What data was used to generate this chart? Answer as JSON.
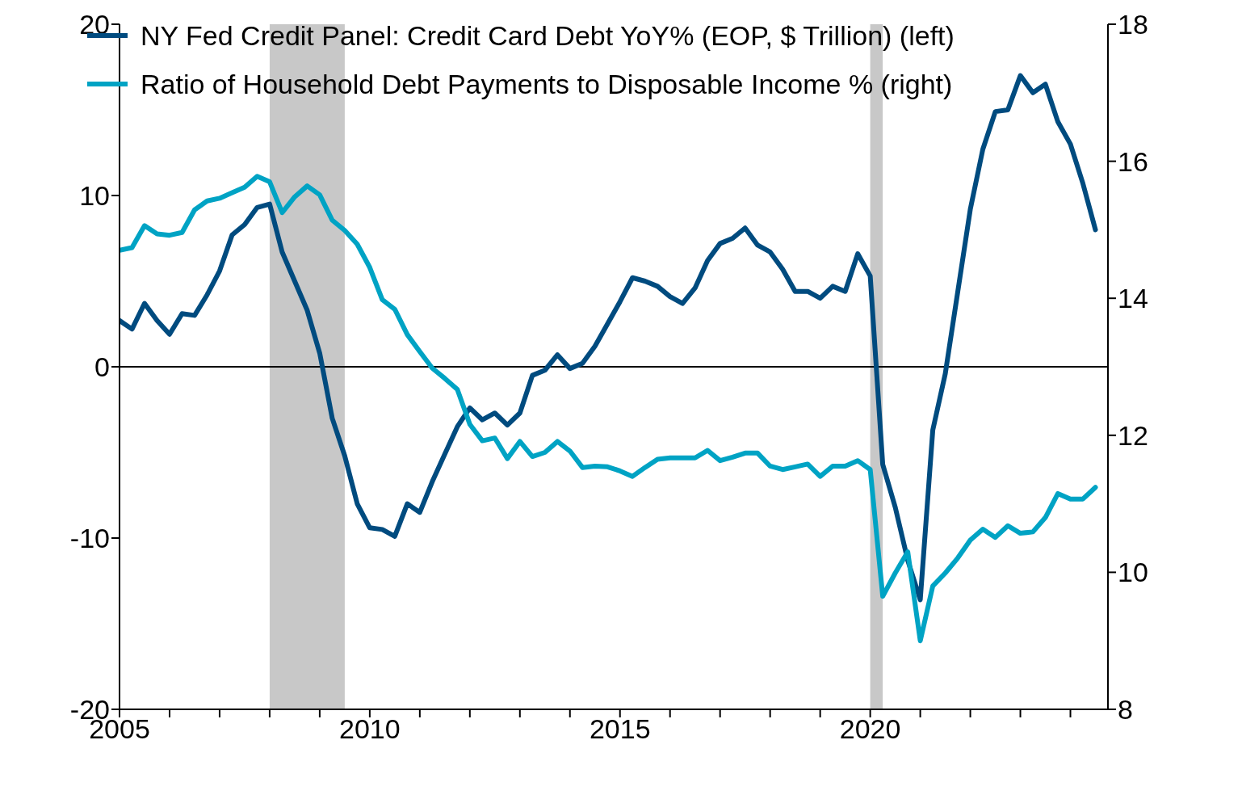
{
  "chart_data": {
    "type": "line",
    "x": [
      2005,
      2005.25,
      2005.5,
      2005.75,
      2006,
      2006.25,
      2006.5,
      2006.75,
      2007,
      2007.25,
      2007.5,
      2007.75,
      2008,
      2008.25,
      2008.5,
      2008.75,
      2009,
      2009.25,
      2009.5,
      2009.75,
      2010,
      2010.25,
      2010.5,
      2010.75,
      2011,
      2011.25,
      2011.5,
      2011.75,
      2012,
      2012.25,
      2012.5,
      2012.75,
      2013,
      2013.25,
      2013.5,
      2013.75,
      2014,
      2014.25,
      2014.5,
      2014.75,
      2015,
      2015.25,
      2015.5,
      2015.75,
      2016,
      2016.25,
      2016.5,
      2016.75,
      2017,
      2017.25,
      2017.5,
      2017.75,
      2018,
      2018.25,
      2018.5,
      2018.75,
      2019,
      2019.25,
      2019.5,
      2019.75,
      2020,
      2020.25,
      2020.5,
      2020.75,
      2021,
      2021.25,
      2021.5,
      2021.75,
      2022,
      2022.25,
      2022.5,
      2022.75,
      2023,
      2023.25,
      2023.5,
      2023.75,
      2024,
      2024.25,
      2024.5
    ],
    "series": [
      {
        "name": "NY Fed Credit Panel: Credit Card Debt YoY% (EOP, $ Trillion) (left)",
        "color": "#004b7f",
        "axis": "y",
        "values": [
          2.7,
          2.2,
          3.7,
          2.7,
          1.9,
          3.1,
          3.0,
          4.2,
          5.6,
          7.7,
          8.3,
          9.3,
          9.5,
          6.7,
          5.0,
          3.3,
          0.8,
          -3.0,
          -5.2,
          -8.0,
          -9.4,
          -9.5,
          -9.9,
          -8.0,
          -8.5,
          -6.7,
          -5.1,
          -3.5,
          -2.4,
          -3.1,
          -2.7,
          -3.4,
          -2.7,
          -0.5,
          -0.2,
          0.7,
          -0.1,
          0.2,
          1.2,
          2.5,
          3.8,
          5.2,
          5.0,
          4.7,
          4.1,
          3.7,
          4.6,
          6.2,
          7.2,
          7.5,
          8.1,
          7.1,
          6.7,
          5.7,
          4.4,
          4.4,
          4.0,
          4.7,
          4.4,
          6.6,
          5.3,
          -5.7,
          -8.2,
          -11.3,
          -13.6,
          -3.7,
          -0.4,
          4.4,
          9.2,
          12.7,
          14.9,
          15.0,
          17.0,
          16.0,
          16.5,
          14.3,
          13.0,
          10.7,
          8.0
        ]
      },
      {
        "name": "Ratio of Household Debt Payments to Disposable Income % (right)",
        "color": "#00a3c4",
        "axis": "y2",
        "values": [
          14.7,
          14.74,
          15.06,
          14.94,
          14.92,
          14.96,
          15.29,
          15.42,
          15.46,
          15.54,
          15.62,
          15.78,
          15.7,
          15.25,
          15.48,
          15.64,
          15.51,
          15.14,
          14.99,
          14.79,
          14.45,
          13.98,
          13.84,
          13.47,
          13.22,
          12.98,
          12.83,
          12.67,
          12.16,
          11.92,
          11.96,
          11.66,
          11.91,
          11.69,
          11.75,
          11.91,
          11.77,
          11.53,
          11.55,
          11.54,
          11.48,
          11.4,
          11.53,
          11.65,
          11.67,
          11.67,
          11.67,
          11.78,
          11.63,
          11.68,
          11.74,
          11.74,
          11.55,
          11.5,
          11.54,
          11.58,
          11.4,
          11.55,
          11.55,
          11.63,
          11.5,
          9.65,
          9.99,
          10.3,
          9.0,
          9.8,
          9.99,
          10.21,
          10.47,
          10.63,
          10.51,
          10.68,
          10.57,
          10.59,
          10.8,
          11.15,
          11.07,
          11.07,
          11.24
        ]
      }
    ],
    "xlim": [
      2005,
      2024.75
    ],
    "xticks": [
      2005,
      {
        "value": 2006,
        "label": null
      },
      {
        "value": 2007,
        "label": null
      },
      {
        "value": 2008,
        "label": null
      },
      {
        "value": 2009,
        "label": null
      },
      2010,
      {
        "value": 2011,
        "label": null
      },
      {
        "value": 2012,
        "label": null
      },
      {
        "value": 2013,
        "label": null
      },
      {
        "value": 2014,
        "label": null
      },
      2015,
      {
        "value": 2016,
        "label": null
      },
      {
        "value": 2017,
        "label": null
      },
      {
        "value": 2018,
        "label": null
      },
      {
        "value": 2019,
        "label": null
      },
      2020,
      {
        "value": 2021,
        "label": null
      },
      {
        "value": 2022,
        "label": null
      },
      {
        "value": 2023,
        "label": null
      },
      {
        "value": 2024,
        "label": null
      }
    ],
    "ylim": [
      -20,
      20
    ],
    "yticks": [
      -20,
      -10,
      0,
      10,
      20
    ],
    "y2lim": [
      8,
      18
    ],
    "y2ticks": [
      8,
      10,
      12,
      14,
      16,
      18
    ],
    "ref_lines": [
      {
        "axis": "y",
        "value": 0,
        "color": "#000000"
      }
    ],
    "bands": [
      {
        "axis": "x",
        "from": 2008,
        "to": 2009.5,
        "color": "#c8c8c8"
      },
      {
        "axis": "x",
        "from": 2020,
        "to": 2020.25,
        "color": "#c8c8c8"
      }
    ],
    "legend": "top left",
    "marker": "none",
    "line_style": "solid"
  }
}
